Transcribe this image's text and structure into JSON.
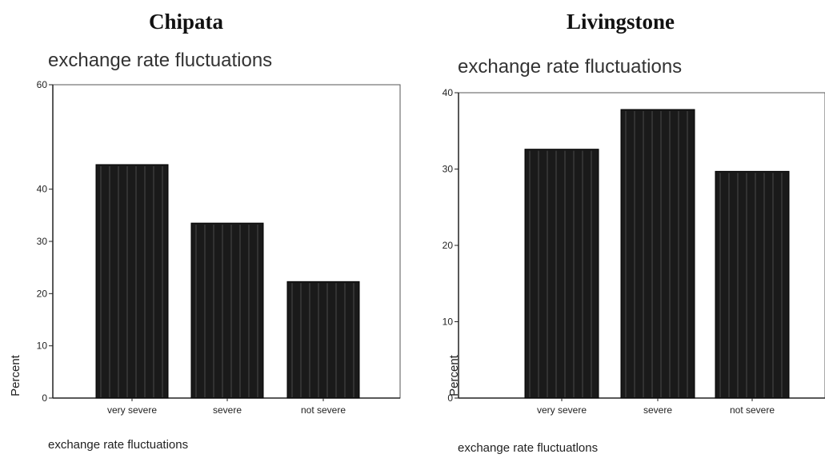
{
  "chart_data": [
    {
      "type": "bar",
      "heading": "Chipata",
      "title": "exchange rate fluctuations",
      "xlabel": "exchange rate fluctuations",
      "ylabel": "Percent",
      "categories": [
        "very severe",
        "severe",
        "not severe"
      ],
      "values": [
        44.7,
        33.5,
        22.3
      ],
      "ylim": [
        0,
        60
      ],
      "yticks": [
        "0",
        "10",
        "20",
        "30",
        "40",
        "60"
      ],
      "grid": false,
      "bar_color": "#1a1a1a"
    },
    {
      "type": "bar",
      "heading": "Livingstone",
      "title": "exchange rate fluctuations",
      "xlabel": "exchange rate fluctuatlons",
      "ylabel": "Percent",
      "categories": [
        "very severe",
        "severe",
        "not severe"
      ],
      "values": [
        32.6,
        37.8,
        29.7
      ],
      "ylim": [
        0,
        40
      ],
      "yticks": [
        "0",
        "10",
        "20",
        "30",
        "40"
      ],
      "grid": false,
      "bar_color": "#1a1a1a"
    }
  ]
}
